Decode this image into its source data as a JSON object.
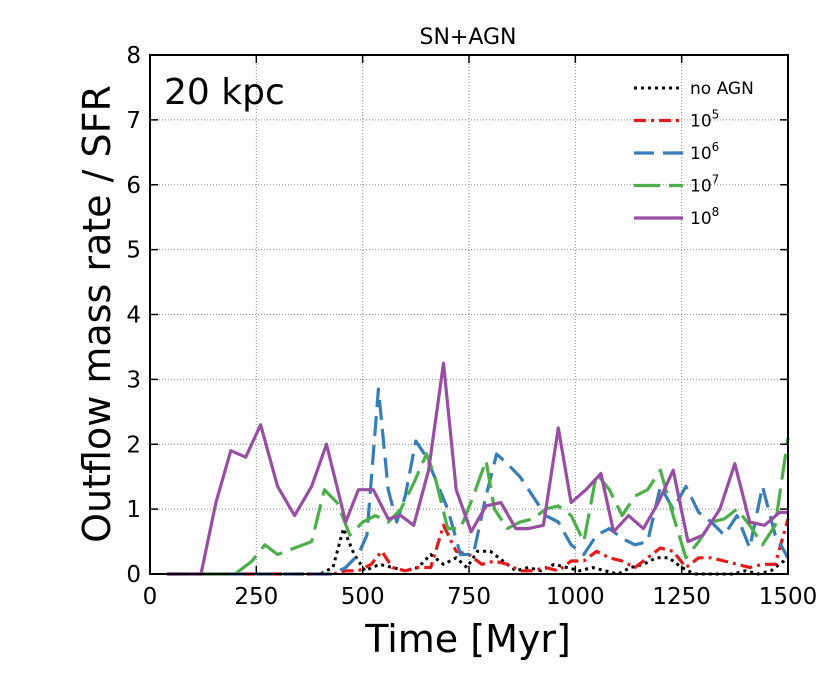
{
  "chart_data": {
    "type": "line",
    "title": "SN+AGN",
    "annotation": "20 kpc",
    "xlabel": "Time [Myr]",
    "ylabel": "Outflow mass rate / SFR",
    "xlim": [
      0,
      1500
    ],
    "ylim": [
      0,
      8
    ],
    "xticks": [
      0,
      250,
      500,
      750,
      1000,
      1250,
      1500
    ],
    "yticks": [
      0,
      1,
      2,
      3,
      4,
      5,
      6,
      7,
      8
    ],
    "grid": true,
    "legend_position": "top-right",
    "series": [
      {
        "name": "no AGN",
        "base": "no AGN",
        "sup": "",
        "color": "#000000",
        "dash": "3,4",
        "width": 3,
        "x": [
          40,
          80,
          120,
          160,
          200,
          240,
          280,
          320,
          360,
          400,
          430,
          455,
          480,
          505,
          540,
          570,
          600,
          630,
          660,
          690,
          720,
          745,
          770,
          800,
          830,
          860,
          890,
          920,
          950,
          980,
          1010,
          1040,
          1070,
          1100,
          1130,
          1160,
          1190,
          1220,
          1250,
          1280,
          1310,
          1340,
          1370,
          1400,
          1430,
          1460,
          1490,
          1500
        ],
        "y": [
          0,
          0,
          0,
          0,
          0,
          0,
          0,
          0,
          0,
          0,
          0.1,
          0.7,
          0.3,
          0.05,
          0.15,
          0.1,
          0.05,
          0.1,
          0.3,
          0.15,
          0.25,
          0.1,
          0.35,
          0.35,
          0.2,
          0.05,
          0.1,
          0.05,
          0.15,
          0.1,
          0.05,
          0.1,
          0.05,
          0,
          0.1,
          0.15,
          0.25,
          0.25,
          0.1,
          0,
          0,
          0,
          0,
          0.05,
          0,
          0.05,
          0.2,
          0.3
        ]
      },
      {
        "name": "10^5",
        "base": "10",
        "sup": "5",
        "color": "#e41a1c",
        "dash": "12,5,3,5",
        "width": 3.2,
        "x": [
          40,
          80,
          120,
          160,
          200,
          240,
          280,
          320,
          360,
          400,
          430,
          460,
          490,
          520,
          545,
          570,
          600,
          630,
          660,
          690,
          720,
          750,
          780,
          810,
          840,
          870,
          900,
          930,
          960,
          990,
          1020,
          1050,
          1080,
          1110,
          1140,
          1170,
          1200,
          1230,
          1260,
          1290,
          1320,
          1350,
          1380,
          1410,
          1440,
          1470,
          1500
        ],
        "y": [
          0,
          0,
          0,
          0,
          0,
          0,
          0,
          0,
          0,
          0,
          0,
          0.05,
          0.05,
          0.15,
          0.35,
          0.1,
          0.05,
          0.1,
          0.1,
          0.75,
          0.35,
          0.3,
          0.15,
          0.2,
          0.15,
          0.05,
          0.05,
          0.1,
          0.05,
          0.2,
          0.2,
          0.35,
          0.25,
          0.2,
          0.1,
          0.25,
          0.4,
          0.35,
          0.1,
          0.25,
          0.25,
          0.2,
          0.15,
          0.1,
          0.15,
          0.15,
          0.85
        ]
      },
      {
        "name": "10^6",
        "base": "10",
        "sup": "6",
        "color": "#377eb8",
        "dash": "20,9",
        "width": 3.2,
        "x": [
          40,
          80,
          120,
          160,
          200,
          240,
          280,
          320,
          360,
          400,
          430,
          460,
          490,
          510,
          537,
          560,
          580,
          600,
          625,
          650,
          675,
          700,
          730,
          760,
          790,
          815,
          840,
          870,
          900,
          930,
          960,
          990,
          1020,
          1050,
          1080,
          1110,
          1140,
          1170,
          1200,
          1230,
          1260,
          1290,
          1320,
          1350,
          1380,
          1410,
          1440,
          1470,
          1500
        ],
        "y": [
          0,
          0,
          0,
          0,
          0,
          0,
          0,
          0,
          0,
          0,
          0,
          0.1,
          0.3,
          0.6,
          2.85,
          1.3,
          0.8,
          1.2,
          2.05,
          1.8,
          1.4,
          1.0,
          0.3,
          0.3,
          1.2,
          1.85,
          1.7,
          1.5,
          1.2,
          0.9,
          0.8,
          0.45,
          0.3,
          0.6,
          0.7,
          0.55,
          0.45,
          0.5,
          1.35,
          1.0,
          1.35,
          0.95,
          0.8,
          0.6,
          0.9,
          0.4,
          1.35,
          0.6,
          0.25
        ]
      },
      {
        "name": "10^7",
        "base": "10",
        "sup": "7",
        "color": "#4daf4a",
        "dash": "26,9",
        "width": 3.2,
        "x": [
          40,
          80,
          120,
          160,
          200,
          240,
          270,
          300,
          340,
          380,
          410,
          440,
          470,
          500,
          530,
          560,
          590,
          620,
          650,
          670,
          700,
          730,
          760,
          790,
          810,
          840,
          870,
          900,
          930,
          960,
          990,
          1020,
          1050,
          1080,
          1110,
          1140,
          1170,
          1200,
          1230,
          1260,
          1290,
          1320,
          1350,
          1380,
          1410,
          1440,
          1470,
          1500
        ],
        "y": [
          0,
          0,
          0,
          0,
          0,
          0.2,
          0.45,
          0.3,
          0.4,
          0.5,
          1.3,
          1.1,
          0.6,
          0.8,
          0.9,
          0.8,
          1.0,
          1.4,
          1.85,
          1.5,
          0.7,
          0.7,
          1.2,
          1.75,
          1.0,
          0.7,
          0.8,
          0.85,
          1.0,
          1.05,
          0.9,
          0.5,
          1.55,
          1.3,
          0.9,
          1.2,
          1.3,
          1.6,
          0.9,
          0.25,
          0.5,
          0.8,
          0.85,
          1.0,
          0.75,
          0.45,
          0.75,
          2.1
        ]
      },
      {
        "name": "10^8",
        "base": "10",
        "sup": "8",
        "color": "#984ea3",
        "dash": "",
        "width": 3.2,
        "x": [
          40,
          80,
          120,
          155,
          190,
          225,
          260,
          300,
          340,
          380,
          415,
          460,
          490,
          525,
          560,
          590,
          620,
          655,
          690,
          720,
          755,
          790,
          825,
          860,
          890,
          925,
          960,
          990,
          1025,
          1060,
          1090,
          1125,
          1160,
          1195,
          1230,
          1265,
          1300,
          1340,
          1375,
          1410,
          1445,
          1480,
          1500
        ],
        "y": [
          0,
          0,
          0,
          1.1,
          1.9,
          1.8,
          2.3,
          1.35,
          0.9,
          1.35,
          2.0,
          0.8,
          1.3,
          1.3,
          0.85,
          0.9,
          0.75,
          1.6,
          3.25,
          1.3,
          0.65,
          1.05,
          1.1,
          0.7,
          0.7,
          0.75,
          2.25,
          1.1,
          1.3,
          1.55,
          0.65,
          0.9,
          0.7,
          1.1,
          1.6,
          0.5,
          0.6,
          1.0,
          1.7,
          0.8,
          0.75,
          0.95,
          0.95
        ]
      }
    ]
  }
}
